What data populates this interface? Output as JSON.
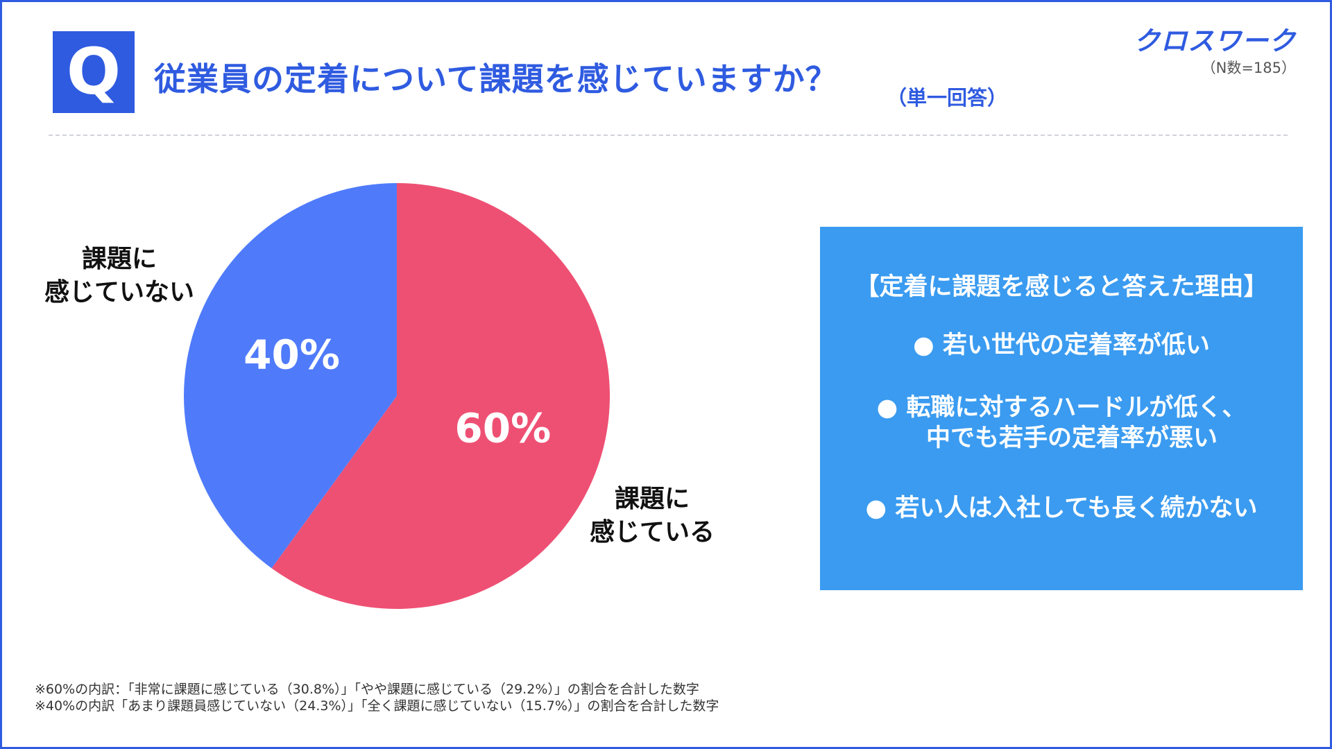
{
  "header": {
    "badge": "Q",
    "title": "従業員の定着について課題を感じていますか？",
    "subtitle": "（単一回答）",
    "brand": "クロスワーク",
    "sample_size": "（N数=185）"
  },
  "chart_data": {
    "type": "pie",
    "title": "従業員の定着について課題を感じていますか？",
    "slices": [
      {
        "name": "課題に\n感じている",
        "value": 60,
        "label": "60%",
        "color": "#ee5073"
      },
      {
        "name": "課題に\n感じていない",
        "value": 40,
        "label": "40%",
        "color": "#4f7bfb"
      }
    ],
    "start": "top",
    "direction": "clockwise",
    "legend": "none"
  },
  "reasons": {
    "title": "【定着に課題を感じると答えた理由】",
    "items": [
      {
        "lines": [
          "●  若い世代の定着率が低い"
        ]
      },
      {
        "lines": [
          "●  転職に対するハードルが低く、",
          "中でも若手の定着率が悪い"
        ]
      },
      {
        "lines": [
          "●  若い人は入社しても長く続かない"
        ]
      }
    ]
  },
  "footnotes": [
    "※60%の内訳：「非常に課題に感じている（30.8%）」「やや課題に感じている（29.2%）」の割合を合計した数字",
    "※40%の内訳「あまり課題員感じていない（24.3%）」「全く課題に感じていない（15.7%）」の割合を合計した数字"
  ]
}
